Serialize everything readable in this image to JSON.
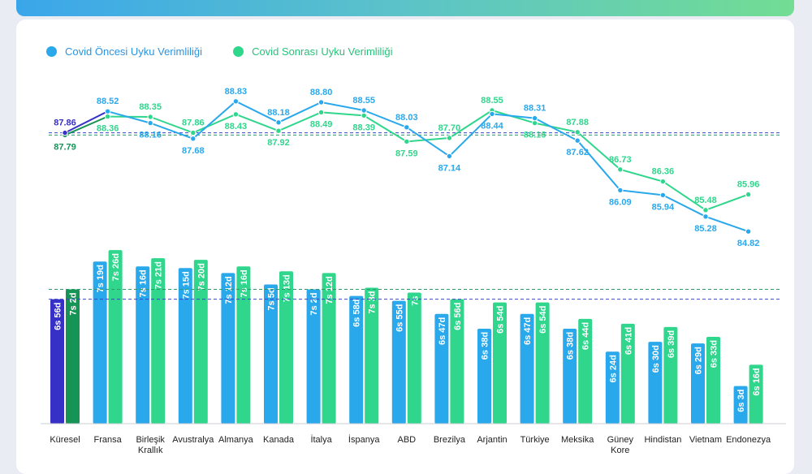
{
  "legend": {
    "before": "Covid Öncesi Uyku Verimliliği",
    "after": "Covid Sonrası Uyku Verimliliği"
  },
  "colors": {
    "before": "#2aa8ec",
    "after": "#2fd68c",
    "global_before_dark": "#3630c7",
    "global_after_dark": "#159456"
  },
  "chart_data": [
    {
      "type": "line",
      "title": "",
      "categories": [
        "Küresel",
        "Fransa",
        "Birleşik Krallık",
        "Avustralya",
        "Almanya",
        "Kanada",
        "İtalya",
        "İspanya",
        "ABD",
        "Brezilya",
        "Arjantin",
        "Türkiye",
        "Meksika",
        "Güney Kore",
        "Hindistan",
        "Vietnam",
        "Endonezya"
      ],
      "series": [
        {
          "name": "Covid Öncesi Uyku Verimliliği",
          "values": [
            87.86,
            88.52,
            88.16,
            87.68,
            88.83,
            88.18,
            88.8,
            88.55,
            88.03,
            87.14,
            88.44,
            88.31,
            87.62,
            86.09,
            85.94,
            85.28,
            84.82
          ]
        },
        {
          "name": "Covid Sonrası Uyku Verimliliği",
          "values": [
            87.79,
            88.36,
            88.35,
            87.86,
            88.43,
            87.92,
            88.49,
            88.39,
            87.59,
            87.7,
            88.55,
            88.16,
            87.88,
            86.73,
            86.36,
            85.48,
            85.96
          ]
        }
      ],
      "value_labels": {
        "before": [
          "87.86",
          "88.52",
          "88.16",
          "87.68",
          "88.83",
          "88.18",
          "88.80",
          "88.55",
          "88.03",
          "87.14",
          "88.44",
          "88.31",
          "87.62",
          "86.09",
          "85.94",
          "85.28",
          "84.82"
        ],
        "after": [
          "87.79",
          "88.36",
          "88.35",
          "87.86",
          "88.43",
          "87.92",
          "88.49",
          "88.39",
          "87.59",
          "87.70",
          "88.55",
          "88.16",
          "87.88",
          "86.73",
          "86.36",
          "85.48",
          "85.96"
        ]
      },
      "ylim": [
        84.5,
        89.0
      ],
      "reference_lines": {
        "before": 87.86,
        "after": 87.79
      }
    },
    {
      "type": "bar",
      "title": "",
      "categories": [
        "Küresel",
        "Fransa",
        "Birleşik\nKrallık",
        "Avustralya",
        "Almanya",
        "Kanada",
        "İtalya",
        "İspanya",
        "ABD",
        "Brezilya",
        "Arjantin",
        "Türkiye",
        "Meksika",
        "Güney\nKore",
        "Hindistan",
        "Vietnam",
        "Endonezya"
      ],
      "series": [
        {
          "name": "Covid Öncesi",
          "minutes": [
            416,
            439,
            436,
            435,
            432,
            425,
            422,
            418,
            415,
            407,
            398,
            407,
            398,
            384,
            390,
            389,
            363
          ],
          "labels": [
            "6s 56d",
            "7s 19d",
            "7s 16d",
            "7s 15d",
            "7s 12d",
            "7s 5d",
            "7s 2d",
            "6s 58d",
            "6s 55d",
            "6s 47d",
            "6s 38d",
            "6s 47d",
            "6s 38d",
            "6s 24d",
            "6s 30d",
            "6s 29d",
            "6s 3d"
          ]
        },
        {
          "name": "Covid Sonrası",
          "minutes": [
            422,
            446,
            441,
            440,
            436,
            433,
            432,
            423,
            420,
            416,
            414,
            414,
            404,
            401,
            399,
            393,
            376
          ],
          "labels": [
            "7s 2d",
            "7s 26d",
            "7s 21d",
            "7s 20d",
            "7s 16d",
            "7s 13d",
            "7s 12d",
            "7s 3d",
            "7s",
            "6s 56d",
            "6s 54d",
            "6s 54d",
            "6s 44d",
            "6s 41d",
            "6s 39d",
            "6s 33d",
            "6s 16d"
          ]
        }
      ],
      "reference_lines": {
        "before": 416,
        "after": 422
      },
      "ylim": [
        340,
        450
      ]
    }
  ]
}
